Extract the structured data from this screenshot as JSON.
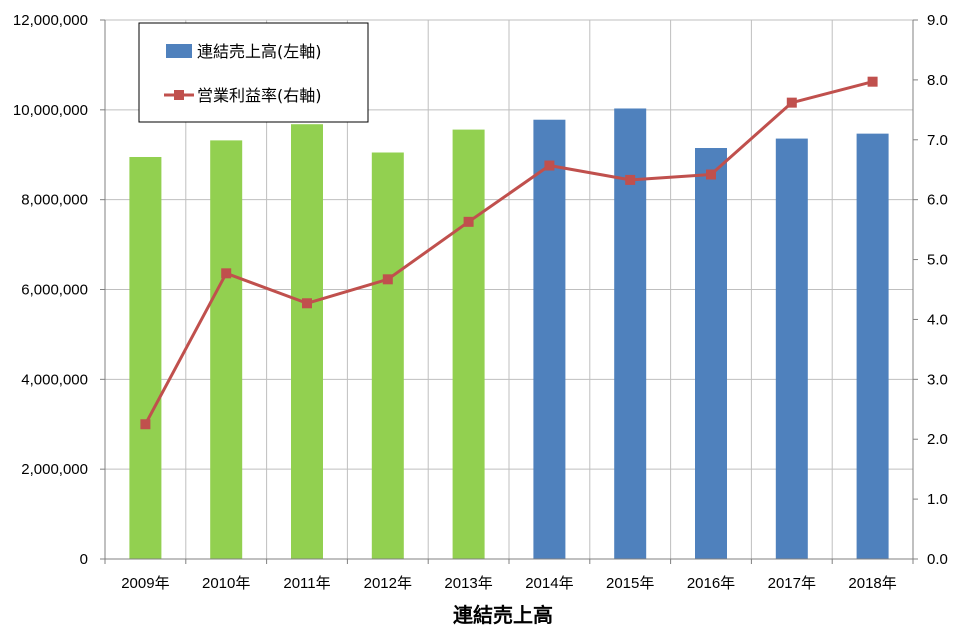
{
  "chart_data": {
    "type": "bar",
    "categories": [
      "2009年",
      "2010年",
      "2011年",
      "2012年",
      "2013年",
      "2014年",
      "2015年",
      "2016年",
      "2017年",
      "2018年"
    ],
    "xlabel": "連結売上高",
    "ylim_left": [
      0,
      12000000
    ],
    "ylim_right": [
      0,
      9
    ],
    "left_ticks": [
      "0",
      "2,000,000",
      "4,000,000",
      "6,000,000",
      "8,000,000",
      "10,000,000",
      "12,000,000"
    ],
    "right_ticks": [
      "0.0",
      "1.0",
      "2.0",
      "3.0",
      "4.0",
      "5.0",
      "6.0",
      "7.0",
      "8.0",
      "9.0"
    ],
    "grid": true,
    "legend_position": "top-left",
    "series": [
      {
        "name": "連結売上高(左軸)",
        "type": "bar",
        "axis": "left",
        "values": [
          8950000,
          9320000,
          9680000,
          9050000,
          9560000,
          9780000,
          10030000,
          9150000,
          9360000,
          9470000
        ],
        "colors": [
          "#92d050",
          "#92d050",
          "#92d050",
          "#92d050",
          "#92d050",
          "#4f81bd",
          "#4f81bd",
          "#4f81bd",
          "#4f81bd",
          "#4f81bd"
        ],
        "legend_color": "#4f81bd"
      },
      {
        "name": "営業利益率(右軸)",
        "type": "line",
        "axis": "right",
        "values": [
          2.25,
          4.77,
          4.27,
          4.67,
          5.63,
          6.57,
          6.33,
          6.42,
          7.62,
          7.97
        ],
        "color": "#c0504d"
      }
    ]
  }
}
